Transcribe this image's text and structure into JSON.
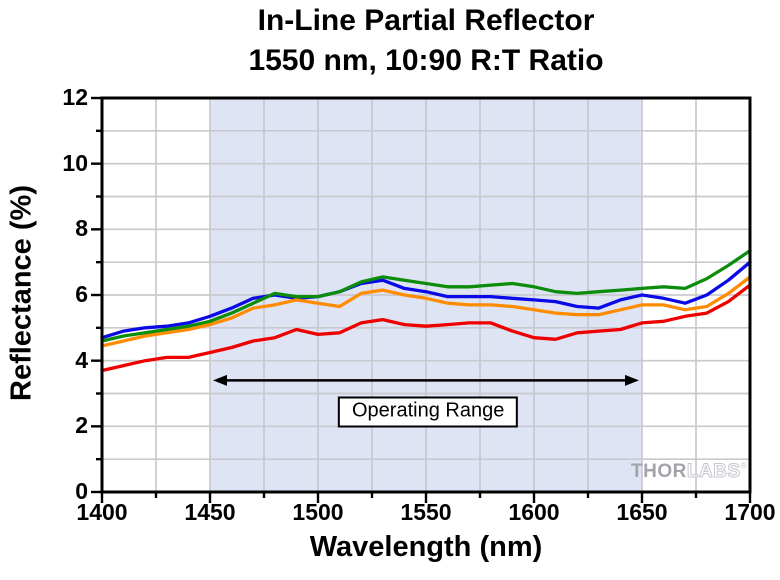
{
  "title": {
    "line1": "In-Line Partial Reflector",
    "line2": "1550 nm, 10:90 R:T Ratio"
  },
  "chart_data": {
    "type": "line",
    "title": "In-Line Partial Reflector",
    "subtitle": "1550 nm, 10:90 R:T Ratio",
    "xlabel": "Wavelength (nm)",
    "ylabel": "Reflectance (%)",
    "xlim": [
      1400,
      1700
    ],
    "ylim": [
      0,
      12
    ],
    "x_major_ticks": [
      1400,
      1450,
      1500,
      1550,
      1600,
      1650,
      1700
    ],
    "y_major_ticks": [
      0,
      2,
      4,
      6,
      8,
      10,
      12
    ],
    "x_minor_step": 25,
    "y_minor_step": 1,
    "grid": true,
    "grid_color": "#c9c9cf",
    "frame_color": "#000000",
    "legend": "none",
    "operating_band": {
      "label": "Operating Range",
      "x_start": 1450,
      "x_end": 1650,
      "fill": "#dee4f4",
      "arrow_y": 3.4,
      "label_center_x": 1551,
      "label_center_y": 2.45,
      "arrow_color": "#000000"
    },
    "x": [
      1400,
      1410,
      1420,
      1430,
      1440,
      1450,
      1460,
      1470,
      1480,
      1490,
      1500,
      1510,
      1520,
      1530,
      1540,
      1550,
      1560,
      1570,
      1580,
      1590,
      1600,
      1610,
      1620,
      1630,
      1640,
      1650,
      1660,
      1670,
      1680,
      1690,
      1700
    ],
    "series": [
      {
        "name": "trace-red",
        "color": "#ee0000",
        "values": [
          3.7,
          3.85,
          4.0,
          4.1,
          4.1,
          4.25,
          4.4,
          4.6,
          4.7,
          4.95,
          4.8,
          4.85,
          5.15,
          5.25,
          5.1,
          5.05,
          5.1,
          5.15,
          5.15,
          4.9,
          4.7,
          4.65,
          4.85,
          4.9,
          4.95,
          5.15,
          5.2,
          5.35,
          5.45,
          5.8,
          6.3
        ]
      },
      {
        "name": "trace-blue",
        "color": "#0a0ae6",
        "values": [
          4.7,
          4.9,
          5.0,
          5.05,
          5.15,
          5.35,
          5.6,
          5.9,
          6.0,
          5.9,
          5.95,
          6.1,
          6.35,
          6.45,
          6.2,
          6.1,
          5.95,
          5.95,
          5.95,
          5.9,
          5.85,
          5.8,
          5.65,
          5.6,
          5.85,
          6.0,
          5.9,
          5.75,
          6.0,
          6.45,
          7.0
        ]
      },
      {
        "name": "trace-orange",
        "color": "#ff8c00",
        "values": [
          4.45,
          4.6,
          4.75,
          4.85,
          4.95,
          5.1,
          5.3,
          5.6,
          5.7,
          5.85,
          5.75,
          5.65,
          6.05,
          6.15,
          6.0,
          5.9,
          5.75,
          5.7,
          5.7,
          5.65,
          5.55,
          5.45,
          5.4,
          5.4,
          5.55,
          5.7,
          5.7,
          5.55,
          5.65,
          6.05,
          6.55
        ]
      },
      {
        "name": "trace-green",
        "color": "#0b8d0b",
        "values": [
          4.6,
          4.75,
          4.85,
          4.95,
          5.05,
          5.2,
          5.45,
          5.75,
          6.05,
          5.95,
          5.95,
          6.1,
          6.4,
          6.55,
          6.45,
          6.35,
          6.25,
          6.25,
          6.3,
          6.35,
          6.25,
          6.1,
          6.05,
          6.1,
          6.15,
          6.2,
          6.25,
          6.2,
          6.5,
          6.9,
          7.35
        ]
      }
    ]
  },
  "watermark": {
    "brand_solid": "THOR",
    "brand_outline": "LABS",
    "registered_mark": "®"
  }
}
